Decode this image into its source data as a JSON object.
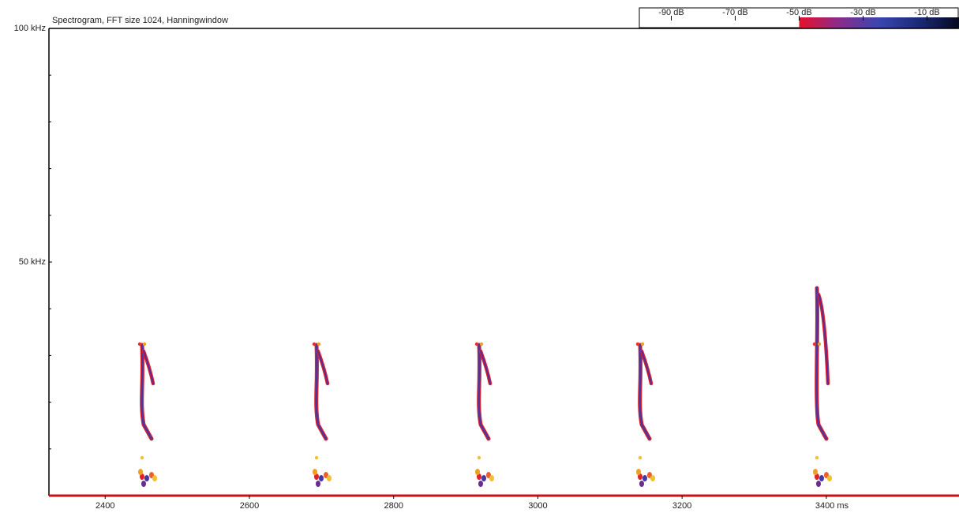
{
  "chart_data": {
    "type": "spectrogram",
    "title": "Spectrogram, FFT size 1024, Hanningwindow",
    "xlim": [
      2322,
      3584
    ],
    "xticks": [
      2400,
      2600,
      2800,
      3000,
      3200,
      {
        "value": 3400,
        "label": "3400 ms"
      }
    ],
    "ylim": [
      0,
      100
    ],
    "yticks": [
      {
        "value": 100,
        "label": "100 kHz"
      },
      {
        "value": 50,
        "label": "50 kHz"
      }
    ],
    "y_minor_ticks": [
      10,
      20,
      30,
      40,
      60,
      70,
      80,
      90
    ],
    "colorbar": {
      "lim": [
        -100,
        0
      ],
      "ticks": [
        {
          "value": -90,
          "label": "-90 dB"
        },
        {
          "value": -70,
          "label": "-70 dB"
        },
        {
          "value": -50,
          "label": "-50 dB"
        },
        {
          "value": -30,
          "label": "-30 dB"
        },
        {
          "value": -10,
          "label": "-10 dB"
        }
      ],
      "colors": [
        "#e8102a",
        "#8a2c8c",
        "#3a46b0",
        "#1a2a78",
        "#05081c"
      ]
    },
    "axis_color": "#cc1111"
  }
}
